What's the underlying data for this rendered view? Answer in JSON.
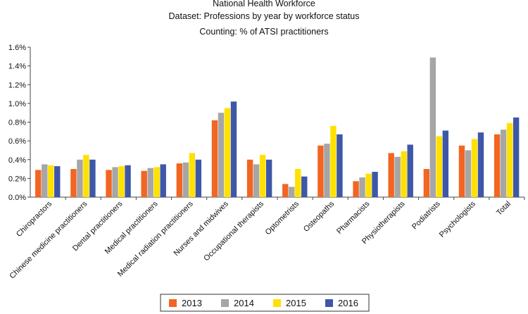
{
  "chart_data": {
    "type": "bar",
    "title": "National Health Workforce",
    "subtitle": "Dataset: Professions by year by workforce status",
    "counting": "Counting: % of ATSI practitioners",
    "xlabel": "",
    "ylabel": "",
    "ylim": [
      0,
      1.6
    ],
    "yticks": [
      "0.0%",
      "0.2%",
      "0.4%",
      "0.6%",
      "0.8%",
      "1.0%",
      "1.2%",
      "1.4%",
      "1.6%"
    ],
    "ytick_values": [
      0,
      0.2,
      0.4,
      0.6,
      0.8,
      1.0,
      1.2,
      1.4,
      1.6
    ],
    "grid": false,
    "legend_placement": "bottom",
    "categories": [
      "Chiropractors",
      "Chinese medicine practitioners",
      "Dental practitioners",
      "Medical practitioners",
      "Medical radiation practitioners",
      "Nurses and midwives",
      "Occupational therapists",
      "Optometrists",
      "Osteopaths",
      "Pharmacists",
      "Physiotherapists",
      "Podiatrists",
      "Psychologists",
      "Total"
    ],
    "series": [
      {
        "name": "2013",
        "color": "#f26522",
        "values": [
          0.29,
          0.3,
          0.29,
          0.28,
          0.36,
          0.82,
          0.4,
          0.14,
          0.55,
          0.17,
          0.47,
          0.3,
          0.55,
          0.67
        ]
      },
      {
        "name": "2014",
        "color": "#a6a6a6",
        "values": [
          0.35,
          0.4,
          0.32,
          0.31,
          0.37,
          0.9,
          0.35,
          0.11,
          0.57,
          0.21,
          0.43,
          1.49,
          0.5,
          0.72
        ]
      },
      {
        "name": "2015",
        "color": "#ffe100",
        "values": [
          0.34,
          0.45,
          0.33,
          0.32,
          0.47,
          0.95,
          0.45,
          0.3,
          0.76,
          0.25,
          0.49,
          0.65,
          0.62,
          0.79
        ]
      },
      {
        "name": "2016",
        "color": "#3e57a8",
        "values": [
          0.33,
          0.4,
          0.34,
          0.35,
          0.4,
          1.02,
          0.4,
          0.22,
          0.67,
          0.27,
          0.56,
          0.71,
          0.69,
          0.85
        ]
      }
    ]
  }
}
